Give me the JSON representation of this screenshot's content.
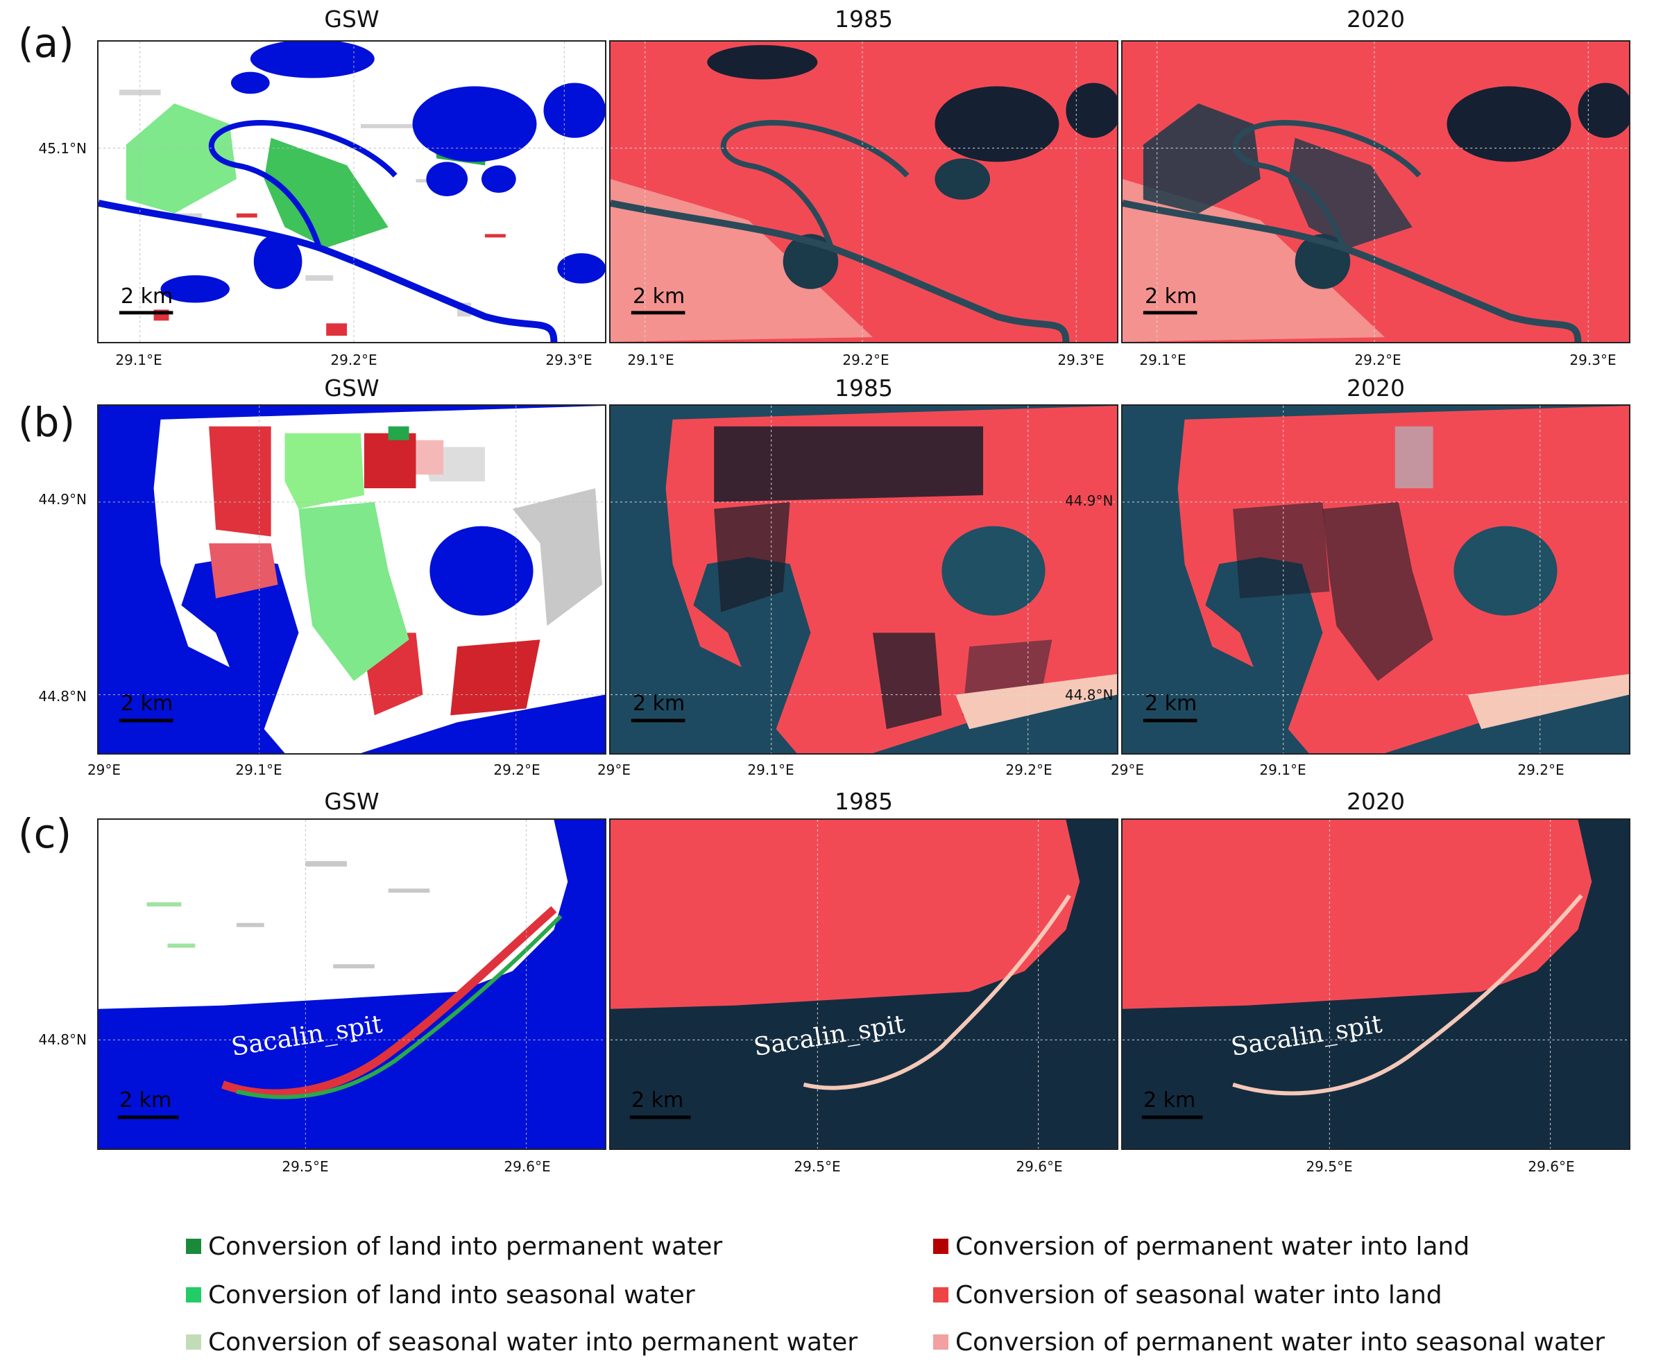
{
  "rows": [
    {
      "label": "(a)",
      "titles": [
        "GSW",
        "1985",
        "2020"
      ],
      "lat_labels": [
        "45.1°N"
      ],
      "lon_labels": [
        [
          "29.1°E",
          "29.2°E",
          "29.3°E"
        ],
        [
          "29.1°E",
          "29.2°E",
          "29.3°E"
        ],
        [
          "29.1°E",
          "29.2°E",
          "29.3°E"
        ]
      ],
      "scale_label": "2 km"
    },
    {
      "label": "(b)",
      "titles": [
        "GSW",
        "1985",
        "2020"
      ],
      "lat_labels": [
        "44.9°N",
        "44.8°N"
      ],
      "inner_lat_labels": [
        "44.9°N",
        "44.8°N"
      ],
      "lon_labels": [
        [
          "29°E",
          "29.1°E",
          "29.2°E"
        ],
        [
          "29°E",
          "29.1°E",
          "29.2°E"
        ],
        [
          "29°E",
          "29.1°E",
          "29.2°E"
        ]
      ],
      "scale_label": "2 km"
    },
    {
      "label": "(c)",
      "titles": [
        "GSW",
        "1985",
        "2020"
      ],
      "lat_labels": [
        "44.8°N"
      ],
      "lon_labels": [
        [
          "29.5°E",
          "29.6°E"
        ],
        [
          "29.5°E",
          "29.6°E"
        ],
        [
          "29.5°E",
          "29.6°E"
        ]
      ],
      "scale_label": "2 km",
      "annotation": "Sacalin_spit"
    }
  ],
  "legend": [
    {
      "label": "Conversion of land into permanent water",
      "color": "#1a8a3a"
    },
    {
      "label": "Conversion of permanent water into land",
      "color": "#b40000"
    },
    {
      "label": "Conversion of land into seasonal water",
      "color": "#22cc66"
    },
    {
      "label": "Conversion of seasonal water into land",
      "color": "#ee4444"
    },
    {
      "label": "Conversion of seasonal water into permanent water",
      "color": "#c2dcb8"
    },
    {
      "label": "Conversion of permanent water into seasonal water",
      "color": "#f2a0a0"
    }
  ],
  "colors": {
    "water_gsw": "#0010d8",
    "veg_red": "#f24a55",
    "water_sat": "#173a52",
    "land_light": "#f5b0a8"
  }
}
